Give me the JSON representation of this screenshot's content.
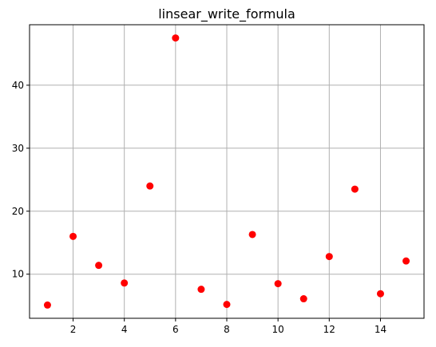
{
  "chart_data": {
    "type": "scatter",
    "title": "linsear_write_formula",
    "xlabel": "",
    "ylabel": "",
    "x": [
      1,
      2,
      3,
      4,
      5,
      6,
      7,
      8,
      9,
      10,
      11,
      12,
      13,
      14,
      15
    ],
    "y": [
      5.1,
      16.0,
      11.4,
      8.6,
      24.0,
      47.5,
      7.6,
      5.2,
      16.3,
      8.5,
      6.1,
      12.8,
      23.5,
      6.9,
      12.1
    ],
    "xlim": [
      0.3,
      15.7
    ],
    "ylim": [
      3.0,
      49.6
    ],
    "xticks": [
      2,
      4,
      6,
      8,
      10,
      12,
      14
    ],
    "yticks": [
      10,
      20,
      30,
      40
    ],
    "grid": true,
    "marker_color": "#ff0000"
  }
}
